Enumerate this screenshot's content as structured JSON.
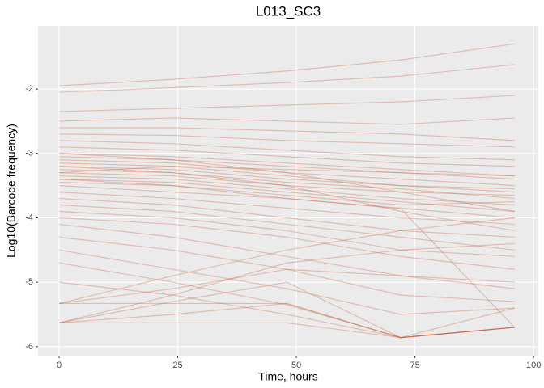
{
  "chart_data": {
    "type": "line",
    "title": "L013_SC3",
    "x_label": "Time, hours",
    "y_label": "Log10(Barcode frequency)",
    "x": [
      0,
      24,
      48,
      72,
      96
    ],
    "color": "#c0522b",
    "alpha": 0.3,
    "grid": true,
    "xlim": [
      -4.44,
      101
    ],
    "ylim": [
      -6.14,
      -1.02
    ],
    "xticks": [
      0,
      25,
      50,
      75,
      100
    ],
    "yticks": [
      -6,
      -5,
      -4,
      -3,
      -2
    ],
    "series": [
      {
        "values": [
          -1.95,
          -1.85,
          -1.72,
          -1.55,
          -1.3
        ]
      },
      {
        "values": [
          -2.05,
          -1.98,
          -1.9,
          -1.8,
          -1.62
        ]
      },
      {
        "values": [
          -2.35,
          -2.3,
          -2.25,
          -2.2,
          -2.1
        ]
      },
      {
        "values": [
          -2.5,
          -2.45,
          -2.5,
          -2.55,
          -2.45
        ]
      },
      {
        "values": [
          -2.7,
          -2.72,
          -2.8,
          -2.85,
          -2.9
        ]
      },
      {
        "values": [
          -2.8,
          -2.85,
          -2.95,
          -3.05,
          -3.1
        ]
      },
      {
        "values": [
          -2.9,
          -2.95,
          -3.05,
          -3.15,
          -3.2
        ]
      },
      {
        "values": [
          -3.0,
          -3.05,
          -3.15,
          -3.25,
          -3.35
        ]
      },
      {
        "values": [
          -3.05,
          -3.1,
          -3.2,
          -3.3,
          -3.4
        ]
      },
      {
        "values": [
          -3.1,
          -3.15,
          -3.3,
          -3.4,
          -3.5
        ]
      },
      {
        "values": [
          -3.15,
          -3.2,
          -3.35,
          -3.5,
          -3.6
        ]
      },
      {
        "values": [
          -3.2,
          -3.25,
          -3.4,
          -3.5,
          -3.55
        ]
      },
      {
        "values": [
          -3.25,
          -3.3,
          -3.45,
          -3.55,
          -3.7
        ]
      },
      {
        "values": [
          -3.3,
          -3.35,
          -3.5,
          -3.6,
          -3.65
        ]
      },
      {
        "values": [
          -3.35,
          -3.4,
          -3.55,
          -3.7,
          -3.8
        ]
      },
      {
        "values": [
          -3.4,
          -3.45,
          -3.6,
          -3.75,
          -3.9
        ]
      },
      {
        "values": [
          -3.45,
          -3.5,
          -3.65,
          -3.8,
          -3.75
        ]
      },
      {
        "values": [
          -3.5,
          -3.6,
          -3.7,
          -3.85,
          -4.0
        ]
      },
      {
        "values": [
          -3.6,
          -3.7,
          -3.85,
          -4.0,
          -4.1
        ]
      },
      {
        "values": [
          -3.7,
          -3.8,
          -4.0,
          -4.2,
          -4.3
        ]
      },
      {
        "values": [
          -3.8,
          -3.9,
          -4.1,
          -4.3,
          -4.5
        ]
      },
      {
        "values": [
          -3.9,
          -4.0,
          -4.2,
          -4.5,
          -4.6
        ]
      },
      {
        "values": [
          -4.0,
          -4.1,
          -4.3,
          -4.6,
          -4.8
        ]
      },
      {
        "values": [
          -4.1,
          -4.3,
          -4.6,
          -4.9,
          -5.0
        ]
      },
      {
        "values": [
          -4.3,
          -4.5,
          -4.8,
          -5.2,
          -5.3
        ]
      },
      {
        "values": [
          -4.5,
          -4.8,
          -5.1,
          -5.5,
          -5.4
        ]
      },
      {
        "values": [
          -4.7,
          -5.0,
          -5.35,
          -5.86,
          -5.7
        ]
      },
      {
        "values": [
          -5.0,
          -5.2,
          -5.5,
          -5.86,
          -5.7
        ]
      },
      {
        "values": [
          -5.33,
          -5.33,
          -5.33,
          -5.86,
          -5.7
        ]
      },
      {
        "values": [
          -5.63,
          -5.5,
          -5.33,
          -5.86,
          -5.7
        ]
      },
      {
        "values": [
          -5.63,
          -5.63,
          -5.63,
          -5.86,
          -5.7
        ]
      },
      {
        "values": [
          -5.33,
          -5.1,
          -4.8,
          -4.9,
          -5.1
        ]
      },
      {
        "values": [
          -5.63,
          -5.2,
          -4.7,
          -4.5,
          -4.4
        ]
      },
      {
        "values": [
          -5.33,
          -4.9,
          -4.5,
          -4.2,
          -4.0
        ]
      },
      {
        "values": [
          -5.63,
          -5.3,
          -5.0,
          -5.86,
          -5.4
        ]
      },
      {
        "values": [
          -3.2,
          -3.3,
          -3.5,
          -3.9,
          -4.2
        ]
      },
      {
        "values": [
          -3.0,
          -3.1,
          -3.3,
          -3.6,
          -3.9
        ]
      },
      {
        "values": [
          -3.3,
          -3.2,
          -3.25,
          -3.3,
          -3.35
        ]
      },
      {
        "values": [
          -2.6,
          -2.6,
          -2.65,
          -2.7,
          -2.8
        ]
      },
      {
        "values": [
          -3.4,
          -3.5,
          -3.7,
          -3.86,
          -5.7
        ]
      }
    ]
  }
}
